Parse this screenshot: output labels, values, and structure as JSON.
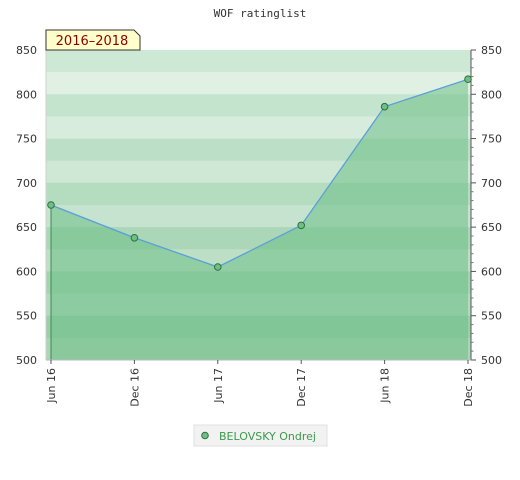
{
  "chart_data": {
    "type": "area",
    "title": "WOF ratinglist",
    "period_badge": "2016–2018",
    "xlabel": "",
    "ylabel": "",
    "categories": [
      "Jun 16",
      "Dec 16",
      "Jun 17",
      "Dec 17",
      "Jun 18",
      "Dec 18"
    ],
    "ylim": [
      500,
      850
    ],
    "yticks": [
      500,
      550,
      600,
      650,
      700,
      750,
      800,
      850
    ],
    "series": [
      {
        "name": "BELOVSKY Ondrej",
        "values": [
          675,
          638,
          605,
          652,
          786,
          817
        ]
      }
    ],
    "legend_position": "bottom-center",
    "colors": {
      "line": "#5aa0d8",
      "area": "#6dbf86",
      "marker": "#3c8c4c",
      "band_dark": "#b5dcc0",
      "band_light": "#e4f3e8",
      "badge_fill": "#ffffcc",
      "badge_text": "#8b0000",
      "legend_text": "#3a9a4a"
    }
  }
}
